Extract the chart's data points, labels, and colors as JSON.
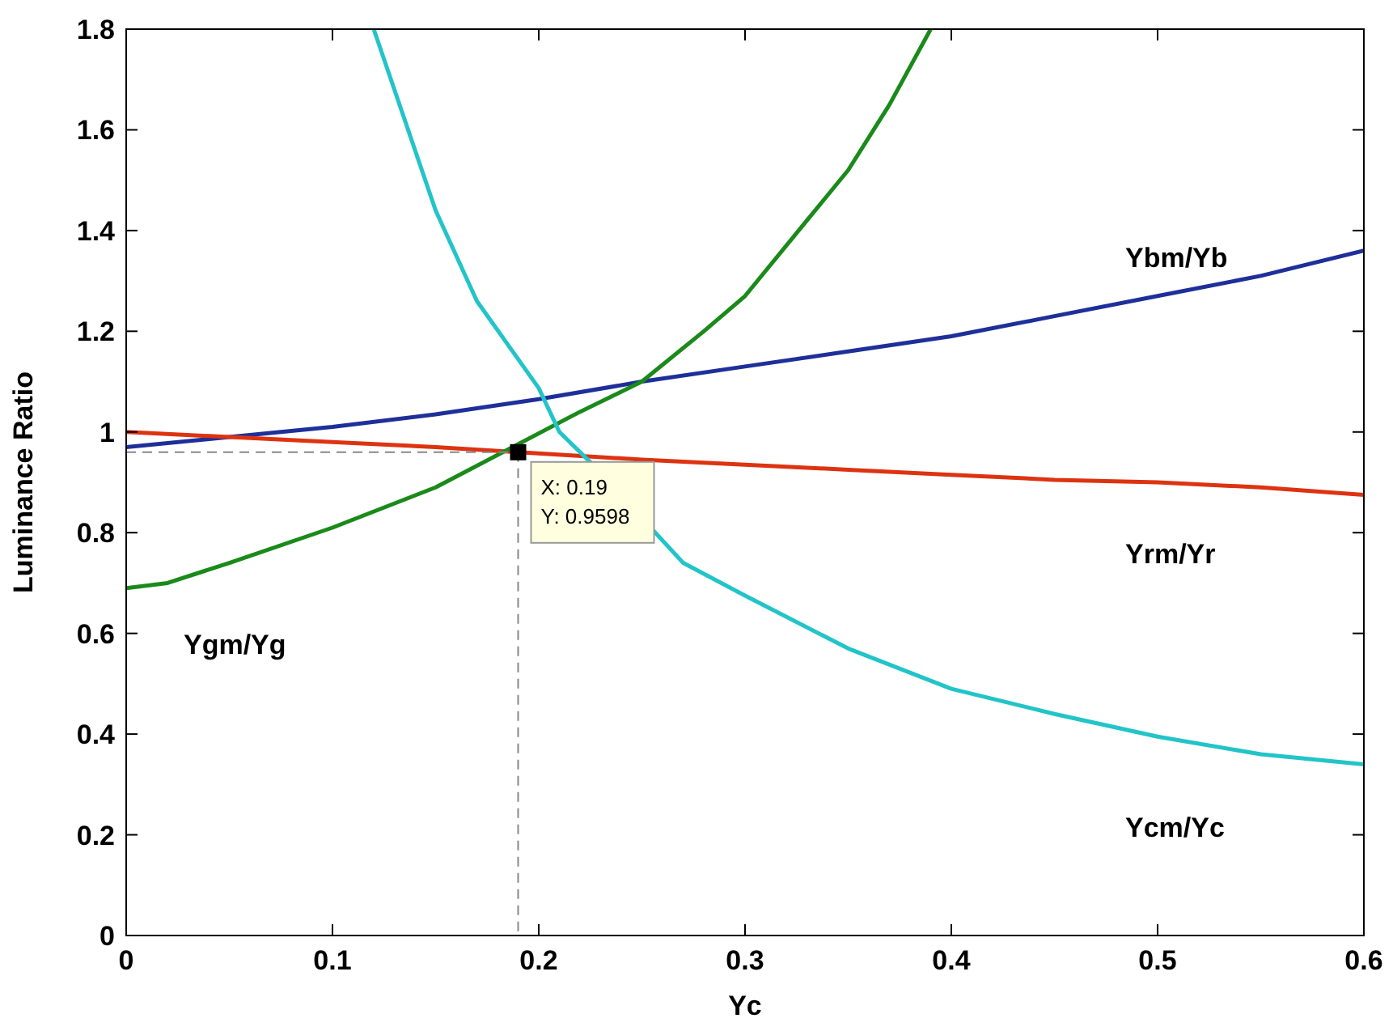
{
  "chart_data": {
    "type": "line",
    "xlabel": "Yc",
    "ylabel": "Luminance Ratio",
    "xlim": [
      0,
      0.6
    ],
    "ylim": [
      0,
      1.8
    ],
    "xticks": [
      0,
      0.1,
      0.2,
      0.3,
      0.4,
      0.5,
      0.6
    ],
    "yticks": [
      0,
      0.2,
      0.4,
      0.6,
      0.8,
      1,
      1.2,
      1.4,
      1.6,
      1.8
    ],
    "grid": false,
    "line_style": "solid",
    "marker": "none",
    "series": [
      {
        "name": "Ybm/Yb",
        "color": "#1f2f9a",
        "x": [
          0,
          0.05,
          0.1,
          0.15,
          0.2,
          0.25,
          0.3,
          0.35,
          0.4,
          0.45,
          0.5,
          0.55,
          0.6
        ],
        "values": [
          0.97,
          0.99,
          1.01,
          1.035,
          1.065,
          1.1,
          1.13,
          1.16,
          1.19,
          1.23,
          1.27,
          1.31,
          1.36
        ]
      },
      {
        "name": "Yrm/Yr",
        "color": "#dd3311",
        "x": [
          0,
          0.05,
          0.1,
          0.15,
          0.19,
          0.25,
          0.3,
          0.35,
          0.4,
          0.45,
          0.5,
          0.55,
          0.6
        ],
        "values": [
          1.0,
          0.99,
          0.98,
          0.97,
          0.96,
          0.945,
          0.935,
          0.925,
          0.915,
          0.905,
          0.9,
          0.89,
          0.875
        ]
      },
      {
        "name": "Ygm/Yg",
        "color": "#1a8a1a",
        "x": [
          0,
          0.02,
          0.05,
          0.1,
          0.15,
          0.22,
          0.25,
          0.28,
          0.3,
          0.33,
          0.35,
          0.37,
          0.39
        ],
        "values": [
          0.69,
          0.7,
          0.74,
          0.81,
          0.89,
          1.04,
          1.1,
          1.2,
          1.27,
          1.42,
          1.52,
          1.65,
          1.8
        ]
      },
      {
        "name": "Ycm/Yc",
        "color": "#22c4c8",
        "x": [
          0.12,
          0.15,
          0.17,
          0.2,
          0.21,
          0.225,
          0.27,
          0.3,
          0.35,
          0.4,
          0.45,
          0.5,
          0.55,
          0.6
        ],
        "values": [
          1.8,
          1.44,
          1.26,
          1.087,
          1.0,
          0.94,
          0.74,
          0.675,
          0.57,
          0.49,
          0.44,
          0.395,
          0.36,
          0.34
        ]
      }
    ],
    "annotations": [
      {
        "text": "X: 0.19\nY: 0.9598",
        "x": 0.19,
        "y": 0.9598
      }
    ]
  }
}
